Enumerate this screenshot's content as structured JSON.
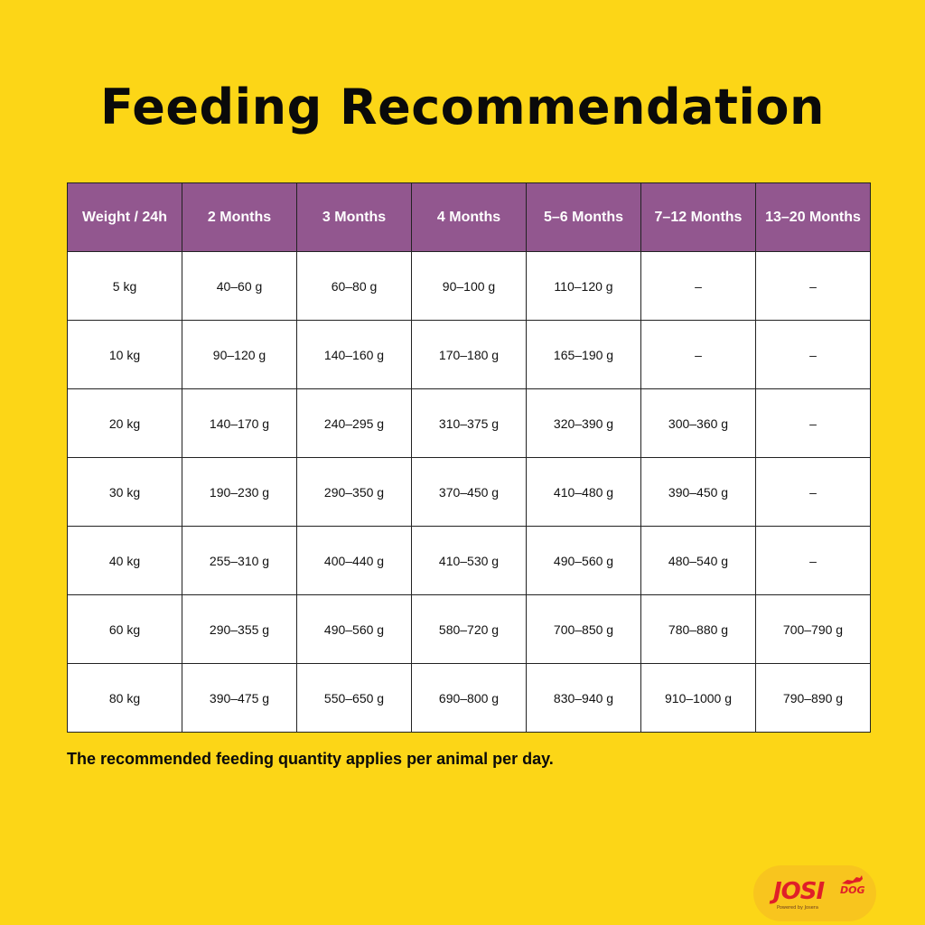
{
  "title": "Feeding Recommendation",
  "table": {
    "headers": [
      "Weight / 24h",
      "2 Months",
      "3 Months",
      "4 Months",
      "5–6 Months",
      "7–12 Months",
      "13–20 Months"
    ],
    "rows": [
      [
        "5 kg",
        "40–60 g",
        "60–80 g",
        "90–100 g",
        "110–120 g",
        "–",
        "–"
      ],
      [
        "10 kg",
        "90–120 g",
        "140–160 g",
        "170–180 g",
        "165–190 g",
        "–",
        "–"
      ],
      [
        "20 kg",
        "140–170 g",
        "240–295 g",
        "310–375 g",
        "320–390 g",
        "300–360 g",
        "–"
      ],
      [
        "30 kg",
        "190–230 g",
        "290–350 g",
        "370–450 g",
        "410–480 g",
        "390–450 g",
        "–"
      ],
      [
        "40 kg",
        "255–310 g",
        "400–440 g",
        "410–530 g",
        "490–560 g",
        "480–540 g",
        "–"
      ],
      [
        "60 kg",
        "290–355 g",
        "490–560 g",
        "580–720 g",
        "700–850 g",
        "780–880 g",
        "700–790 g"
      ],
      [
        "80 kg",
        "390–475 g",
        "550–650 g",
        "690–800 g",
        "830–940 g",
        "910–1000 g",
        "790–890 g"
      ]
    ]
  },
  "note": "The recommended feeding quantity applies per animal per day.",
  "logo": {
    "main": "JOSI",
    "sub": "DOG",
    "tag": "Powered by Josera"
  },
  "colors": {
    "background": "#fcd617",
    "header": "#92578f",
    "logo_red": "#e01f28"
  }
}
